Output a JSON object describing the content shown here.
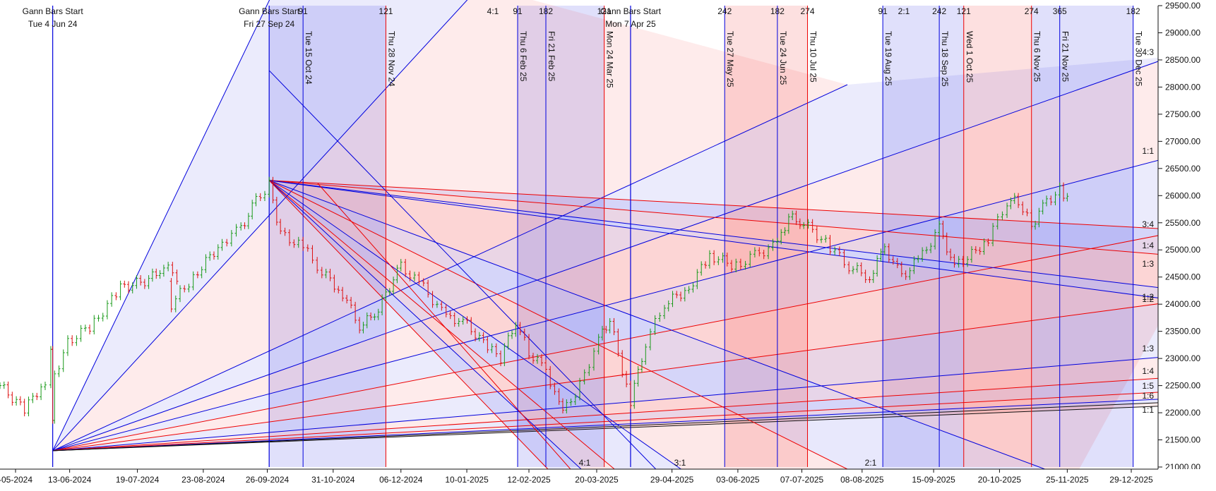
{
  "chart_data": {
    "type": "line",
    "title": "",
    "xlabel": "",
    "ylabel": "",
    "ylim": [
      21000,
      29500
    ],
    "y_axis_side": "right",
    "grid": false,
    "x_tick_labels": [
      "-05-2024",
      "13-06-2024",
      "19-07-2024",
      "23-08-2024",
      "26-09-2024",
      "31-10-2024",
      "06-12-2024",
      "10-01-2025",
      "12-02-2025",
      "20-03-2025",
      "29-04-2025",
      "03-06-2025",
      "07-07-2025",
      "08-08-2025",
      "15-09-2025",
      "20-10-2025",
      "25-11-2025",
      "29-12-2025"
    ],
    "y_ticks": [
      21000,
      21500,
      22000,
      22500,
      23000,
      23500,
      24000,
      24500,
      25000,
      25500,
      26000,
      26500,
      27000,
      27500,
      28000,
      28500,
      29000,
      29500
    ],
    "y_tick_labels": [
      "21000.00",
      "21500.00",
      "22000.00",
      "22500.00",
      "23000.00",
      "23500.00",
      "24000.00",
      "24500.00",
      "25000.00",
      "25500.00",
      "26000.00",
      "26500.00",
      "27000.00",
      "27500.00",
      "28000.00",
      "28500.00",
      "29000.00",
      "29500.00"
    ],
    "gann_starts": [
      {
        "label": "Gann Bars Start",
        "date": "Tue 4 Jun 24",
        "color": "#0000dd"
      },
      {
        "label": "Gann Bars Start",
        "date": "Fri 27 Sep 24",
        "color": "#0000dd"
      },
      {
        "label": "Gann Bars Start",
        "date": "Mon 7 Apr 25",
        "color": "#0000dd"
      }
    ],
    "cycle_lines": [
      {
        "date": "Tue 15 Oct 24",
        "top": "91",
        "color": "#0000dd"
      },
      {
        "date": "Thu 28 Nov 24",
        "top": "121",
        "color": "#ee0000"
      },
      {
        "date": "Thu 6 Feb 25",
        "top": "91",
        "color": "#0000dd"
      },
      {
        "date": "Fri 21 Feb 25",
        "top": "182",
        "color": "#0000dd"
      },
      {
        "date": "Mon 24 Mar 25",
        "top": "121",
        "color": "#ee0000"
      },
      {
        "date": "Tue 27 May 25",
        "top": "242",
        "color": "#0000dd"
      },
      {
        "date": "Tue 24 Jun 25",
        "top": "182",
        "color": "#0000dd"
      },
      {
        "date": "Thu 10 Jul 25",
        "top": "274",
        "color": "#ee0000"
      },
      {
        "date": "Tue 19 Aug 25",
        "top": "91",
        "color": "#0000dd"
      },
      {
        "date": "Thu 18 Sep 25",
        "top": "242",
        "color": "#0000dd"
      },
      {
        "date": "Wed 1 Oct 25",
        "top": "121",
        "color": "#ee0000"
      },
      {
        "date": "Thu 6 Nov 25",
        "top": "274",
        "color": "#ee0000"
      },
      {
        "date": "Fri 21 Nov 25",
        "top": "365",
        "color": "#0000dd"
      },
      {
        "date": "Tue 30 Dec 25",
        "top": "182",
        "color": "#0000dd"
      }
    ],
    "top_ratio_labels": [
      "4:1",
      "2:1"
    ],
    "right_ratio_labels": [
      "4:3",
      "1:1",
      "3:4",
      "1:4",
      "1:3",
      "1:2",
      "1:2",
      "1:3",
      "1:4",
      "1:5",
      "1:6",
      "1:1"
    ],
    "bottom_ratio_labels": [
      "4:1",
      "3:1",
      "2:1"
    ],
    "fan_origin_low": {
      "date": "Tue 4 Jun 24",
      "price": 21300
    },
    "fan_origin_high": {
      "date": "Fri 27 Sep 24",
      "price": 26280
    },
    "colors": {
      "up_bar": "#1a9a1a",
      "down_bar": "#dd1111",
      "blue": "#0000dd",
      "red": "#ee0000",
      "black": "#111111"
    },
    "price_series": [
      {
        "date": "2024-05-07",
        "close": 22500
      },
      {
        "date": "2024-05-20",
        "close": 22050
      },
      {
        "date": "2024-05-31",
        "close": 22600
      },
      {
        "date": "2024-06-03",
        "close": 23250
      },
      {
        "date": "2024-06-04",
        "close": 21900
      },
      {
        "date": "2024-06-05",
        "close": 22700
      },
      {
        "date": "2024-06-12",
        "close": 23300
      },
      {
        "date": "2024-06-26",
        "close": 23650
      },
      {
        "date": "2024-07-10",
        "close": 24300
      },
      {
        "date": "2024-07-25",
        "close": 24450
      },
      {
        "date": "2024-08-02",
        "close": 24700
      },
      {
        "date": "2024-08-09",
        "close": 24500
      },
      {
        "date": "2024-08-06",
        "close": 24000
      },
      {
        "date": "2024-08-20",
        "close": 24600
      },
      {
        "date": "2024-09-02",
        "close": 25150
      },
      {
        "date": "2024-09-12",
        "close": 25400
      },
      {
        "date": "2024-09-20",
        "close": 25900
      },
      {
        "date": "2024-09-27",
        "close": 26200
      },
      {
        "date": "2024-10-03",
        "close": 25300
      },
      {
        "date": "2024-10-15",
        "close": 25050
      },
      {
        "date": "2024-10-25",
        "close": 24600
      },
      {
        "date": "2024-11-05",
        "close": 24200
      },
      {
        "date": "2024-11-14",
        "close": 23600
      },
      {
        "date": "2024-11-22",
        "close": 23800
      },
      {
        "date": "2024-11-28",
        "close": 24200
      },
      {
        "date": "2024-12-06",
        "close": 24700
      },
      {
        "date": "2024-12-18",
        "close": 24300
      },
      {
        "date": "2024-12-30",
        "close": 23750
      },
      {
        "date": "2025-01-08",
        "close": 23700
      },
      {
        "date": "2025-01-21",
        "close": 23200
      },
      {
        "date": "2025-01-28",
        "close": 23000
      },
      {
        "date": "2025-02-05",
        "close": 23700
      },
      {
        "date": "2025-02-12",
        "close": 23100
      },
      {
        "date": "2025-02-21",
        "close": 22800
      },
      {
        "date": "2025-02-28",
        "close": 22150
      },
      {
        "date": "2025-03-04",
        "close": 22100
      },
      {
        "date": "2025-03-11",
        "close": 22500
      },
      {
        "date": "2025-03-21",
        "close": 23350
      },
      {
        "date": "2025-03-27",
        "close": 23700
      },
      {
        "date": "2025-04-07",
        "close": 22200
      },
      {
        "date": "2025-04-15",
        "close": 23300
      },
      {
        "date": "2025-04-25",
        "close": 24000
      },
      {
        "date": "2025-05-08",
        "close": 24300
      },
      {
        "date": "2025-05-19",
        "close": 24900
      },
      {
        "date": "2025-06-02",
        "close": 24700
      },
      {
        "date": "2025-06-12",
        "close": 24900
      },
      {
        "date": "2025-06-24",
        "close": 25100
      },
      {
        "date": "2025-06-30",
        "close": 25600
      },
      {
        "date": "2025-07-08",
        "close": 25500
      },
      {
        "date": "2025-07-22",
        "close": 25050
      },
      {
        "date": "2025-08-01",
        "close": 24700
      },
      {
        "date": "2025-08-12",
        "close": 24500
      },
      {
        "date": "2025-08-20",
        "close": 25050
      },
      {
        "date": "2025-08-29",
        "close": 24500
      },
      {
        "date": "2025-09-09",
        "close": 24900
      },
      {
        "date": "2025-09-18",
        "close": 25400
      },
      {
        "date": "2025-09-26",
        "close": 24700
      },
      {
        "date": "2025-10-03",
        "close": 24850
      },
      {
        "date": "2025-10-14",
        "close": 25200
      },
      {
        "date": "2025-10-24",
        "close": 25900
      },
      {
        "date": "2025-10-30",
        "close": 25900
      },
      {
        "date": "2025-11-06",
        "close": 25450
      },
      {
        "date": "2025-11-14",
        "close": 25900
      },
      {
        "date": "2025-11-21",
        "close": 26100
      },
      {
        "date": "2025-11-25",
        "close": 25900
      },
      {
        "date": "2025-11-28",
        "close": 26200
      }
    ]
  }
}
